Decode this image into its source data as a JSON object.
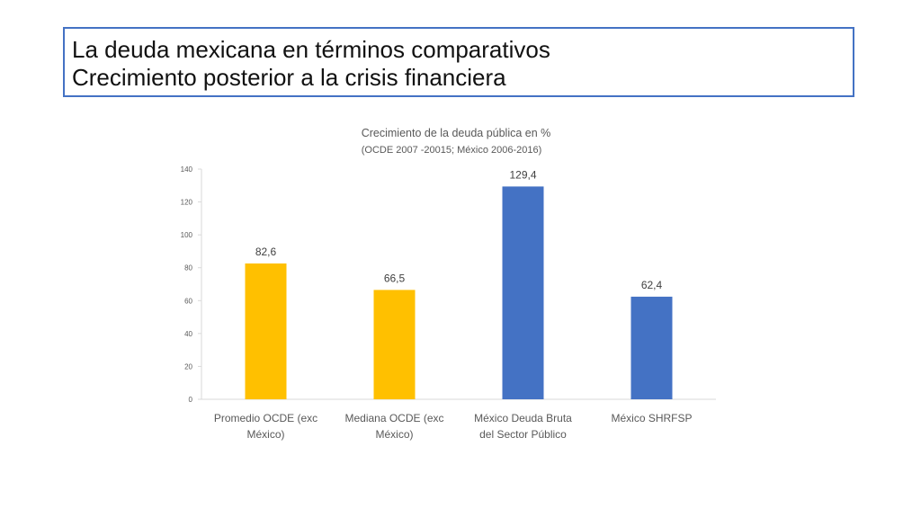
{
  "slide": {
    "title_line1": "La deuda mexicana en términos comparativos",
    "title_line2": "Crecimiento posterior a la crisis financiera"
  },
  "chart_data": {
    "type": "bar",
    "title": "Crecimiento de la deuda pública en %",
    "subtitle": "(OCDE 2007 -20015; México 2006-2016)",
    "categories": [
      [
        "Promedio OCDE (exc",
        "México)"
      ],
      [
        "Mediana OCDE (exc",
        "México)"
      ],
      [
        "México Deuda Bruta",
        "del Sector Público"
      ],
      [
        "México SHRFSP"
      ]
    ],
    "values": [
      82.6,
      66.5,
      129.4,
      62.4
    ],
    "value_labels": [
      "82,6",
      "66,5",
      "129,4",
      "62,4"
    ],
    "colors": [
      "#FFC000",
      "#FFC000",
      "#4472C4",
      "#4472C4"
    ],
    "ylim": [
      0,
      140
    ],
    "yticks": [
      0,
      20,
      40,
      60,
      80,
      100,
      120,
      140
    ],
    "xlabel": "",
    "ylabel": "",
    "grid": false,
    "legend": "none"
  }
}
